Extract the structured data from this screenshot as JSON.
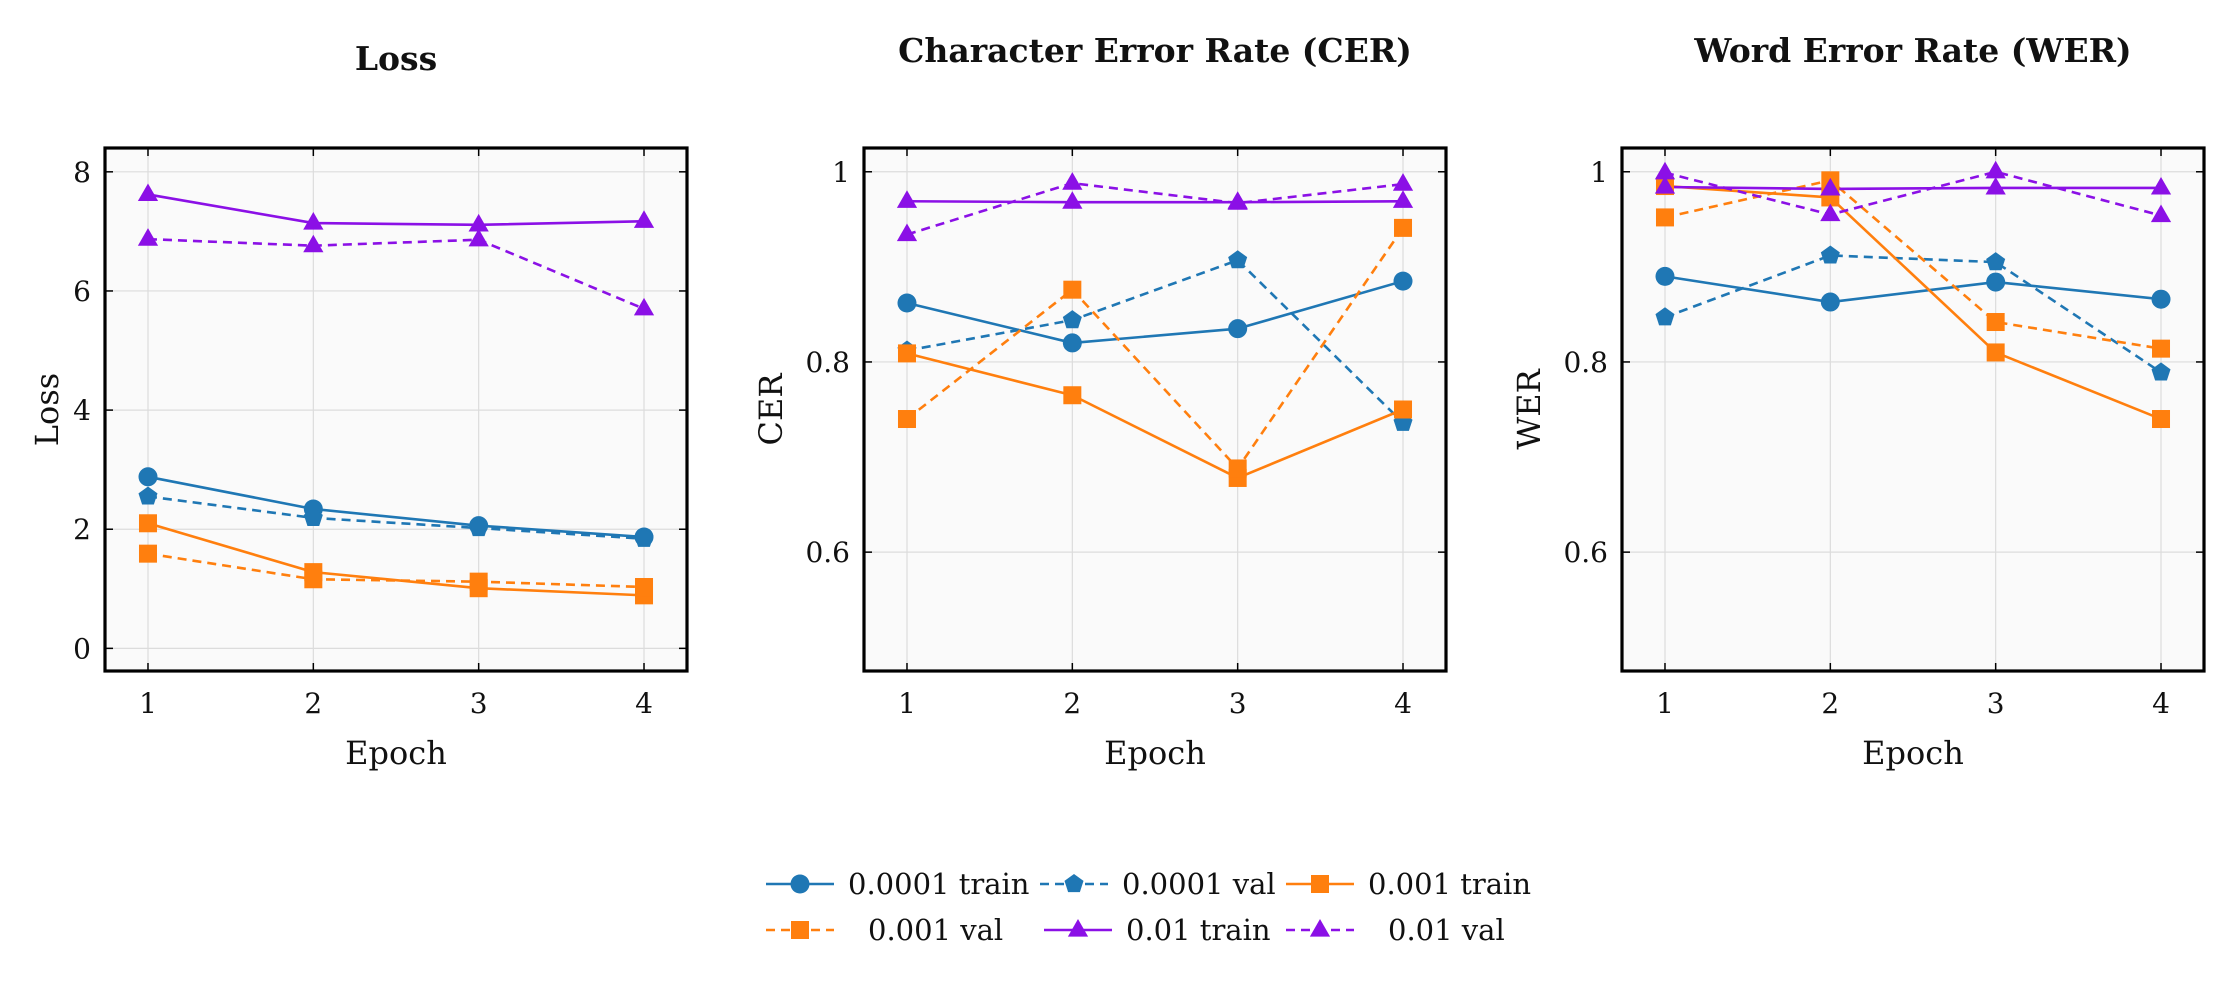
{
  "chart_data": [
    {
      "type": "line",
      "title": "Loss",
      "xlabel": "Epoch",
      "ylabel": "Loss",
      "x": [
        1,
        2,
        3,
        4
      ],
      "xticks": [
        "1",
        "2",
        "3",
        "4"
      ],
      "xlim": [
        0.74,
        4.26
      ],
      "ylim": [
        -0.38,
        8.4
      ],
      "yticks": [
        0,
        2,
        4,
        6,
        8
      ],
      "ytick_labels": [
        "0",
        "2",
        "4",
        "6",
        "8"
      ],
      "grid": true,
      "series": [
        {
          "name": "0.0001 train",
          "values": [
            2.88,
            2.34,
            2.06,
            1.87
          ]
        },
        {
          "name": "0.0001 val",
          "values": [
            2.55,
            2.19,
            2.02,
            1.84
          ]
        },
        {
          "name": "0.001 train",
          "values": [
            2.1,
            1.28,
            1.01,
            0.89
          ]
        },
        {
          "name": "0.001 val",
          "values": [
            1.59,
            1.16,
            1.12,
            1.03
          ]
        },
        {
          "name": "0.01 train",
          "values": [
            7.62,
            7.14,
            7.11,
            7.17
          ]
        },
        {
          "name": "0.01 val",
          "values": [
            6.87,
            6.76,
            6.86,
            5.7
          ]
        }
      ]
    },
    {
      "type": "line",
      "title": "Character Error Rate (CER)",
      "xlabel": "Epoch",
      "ylabel": "CER",
      "x": [
        1,
        2,
        3,
        4
      ],
      "xticks": [
        "1",
        "2",
        "3",
        "4"
      ],
      "xlim": [
        0.74,
        4.26
      ],
      "ylim": [
        0.475,
        1.025
      ],
      "yticks": [
        0.6,
        0.8,
        1.0
      ],
      "ytick_labels": [
        "0.6",
        "0.8",
        "1"
      ],
      "grid": true,
      "series": [
        {
          "name": "0.0001 train",
          "values": [
            0.862,
            0.82,
            0.835,
            0.885
          ]
        },
        {
          "name": "0.0001 val",
          "values": [
            0.812,
            0.844,
            0.907,
            0.736
          ]
        },
        {
          "name": "0.001 train",
          "values": [
            0.809,
            0.765,
            0.678,
            0.75
          ]
        },
        {
          "name": "0.001 val",
          "values": [
            0.74,
            0.876,
            0.688,
            0.941
          ]
        },
        {
          "name": "0.01 train",
          "values": [
            0.969,
            0.968,
            0.968,
            0.969
          ]
        },
        {
          "name": "0.01 val",
          "values": [
            0.934,
            0.988,
            0.967,
            0.987
          ]
        }
      ]
    },
    {
      "type": "line",
      "title": "Word Error Rate (WER)",
      "xlabel": "Epoch",
      "ylabel": "WER",
      "x": [
        1,
        2,
        3,
        4
      ],
      "xticks": [
        "1",
        "2",
        "3",
        "4"
      ],
      "xlim": [
        0.74,
        4.26
      ],
      "ylim": [
        0.475,
        1.025
      ],
      "yticks": [
        0.6,
        0.8,
        1.0
      ],
      "ytick_labels": [
        "0.6",
        "0.8",
        "1"
      ],
      "grid": true,
      "series": [
        {
          "name": "0.0001 train",
          "values": [
            0.89,
            0.863,
            0.884,
            0.866
          ]
        },
        {
          "name": "0.0001 val",
          "values": [
            0.847,
            0.912,
            0.905,
            0.789
          ]
        },
        {
          "name": "0.001 train",
          "values": [
            0.985,
            0.973,
            0.81,
            0.74
          ]
        },
        {
          "name": "0.001 val",
          "values": [
            0.952,
            0.991,
            0.842,
            0.814
          ]
        },
        {
          "name": "0.01 train",
          "values": [
            0.984,
            0.982,
            0.983,
            0.983
          ]
        },
        {
          "name": "0.01 val",
          "values": [
            0.999,
            0.955,
            1.0,
            0.954
          ]
        }
      ]
    }
  ],
  "series_styles": [
    {
      "color": "#1f77b4",
      "dash": "solid",
      "marker": "circle"
    },
    {
      "color": "#1f77b4",
      "dash": "dashed",
      "marker": "pentagon"
    },
    {
      "color": "#ff7f0e",
      "dash": "solid",
      "marker": "square"
    },
    {
      "color": "#ff7f0e",
      "dash": "dashed",
      "marker": "square"
    },
    {
      "color": "#8b10e6",
      "dash": "solid",
      "marker": "triangle"
    },
    {
      "color": "#8b10e6",
      "dash": "dashed",
      "marker": "triangle"
    }
  ],
  "legend": {
    "placement": "bottom-center",
    "entries": [
      "0.0001 train",
      "0.0001 val",
      "0.001 train",
      "0.001 val",
      "0.01 train",
      "0.01 val"
    ]
  }
}
